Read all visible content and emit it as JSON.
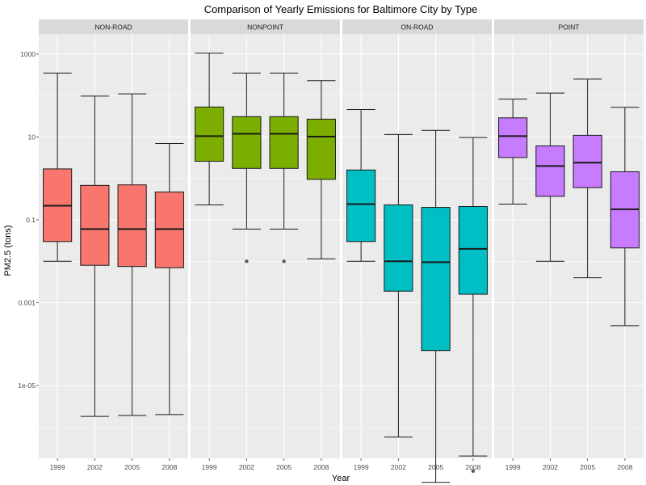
{
  "chart_data": {
    "type": "boxplot",
    "title": "Comparison of Yearly Emissions for Baltimore City by Type",
    "xlabel": "Year",
    "ylabel": "PM2.5 (tons)",
    "y_scale": "log10",
    "ylim": [
      7e-08,
      1000
    ],
    "y_ticks": [
      {
        "value": 1e-05,
        "label": "1e-05"
      },
      {
        "value": 0.001,
        "label": "0.001"
      },
      {
        "value": 0.1,
        "label": "0.1"
      },
      {
        "value": 10,
        "label": "10"
      },
      {
        "value": 1000,
        "label": "1000"
      }
    ],
    "categories": [
      "1999",
      "2002",
      "2005",
      "2008"
    ],
    "grid": true,
    "panels": [
      {
        "name": "NON-ROAD",
        "color": "#f8766d",
        "boxes": [
          {
            "x": "1999",
            "min": 0.01,
            "q1": 0.03,
            "median": 0.22,
            "q3": 1.7,
            "max": 350,
            "outliers": []
          },
          {
            "x": "2002",
            "min": 1.8e-06,
            "q1": 0.008,
            "median": 0.06,
            "q3": 0.68,
            "max": 97,
            "outliers": []
          },
          {
            "x": "2005",
            "min": 1.9e-06,
            "q1": 0.0075,
            "median": 0.06,
            "q3": 0.7,
            "max": 110,
            "outliers": []
          },
          {
            "x": "2008",
            "min": 2e-06,
            "q1": 0.007,
            "median": 0.06,
            "q3": 0.47,
            "max": 7,
            "outliers": []
          }
        ]
      },
      {
        "name": "NONPOINT",
        "color": "#7cae00",
        "boxes": [
          {
            "x": "1999",
            "min": 0.23,
            "q1": 2.6,
            "median": 10.5,
            "q3": 53,
            "max": 1050,
            "outliers": []
          },
          {
            "x": "2002",
            "min": 0.06,
            "q1": 1.75,
            "median": 12,
            "q3": 31,
            "max": 350,
            "outliers": [
              0.01
            ]
          },
          {
            "x": "2005",
            "min": 0.06,
            "q1": 1.75,
            "median": 12,
            "q3": 31,
            "max": 350,
            "outliers": [
              0.01
            ]
          },
          {
            "x": "2008",
            "min": 0.0115,
            "q1": 0.95,
            "median": 10.2,
            "q3": 27,
            "max": 230,
            "outliers": []
          }
        ]
      },
      {
        "name": "ON-ROAD",
        "color": "#00bfc4",
        "boxes": [
          {
            "x": "1999",
            "min": 0.01,
            "q1": 0.03,
            "median": 0.24,
            "q3": 1.6,
            "max": 46,
            "outliers": []
          },
          {
            "x": "2002",
            "min": 5.7e-07,
            "q1": 0.0019,
            "median": 0.01,
            "q3": 0.23,
            "max": 11.5,
            "outliers": []
          },
          {
            "x": "2005",
            "min": 4.6e-08,
            "q1": 7e-05,
            "median": 0.0095,
            "q3": 0.2,
            "max": 14.5,
            "outliers": []
          },
          {
            "x": "2008",
            "min": 2e-07,
            "q1": 0.0016,
            "median": 0.02,
            "q3": 0.21,
            "max": 9.7,
            "outliers": [
              8.6e-08
            ]
          }
        ]
      },
      {
        "name": "POINT",
        "color": "#c77cff",
        "boxes": [
          {
            "x": "1999",
            "min": 0.24,
            "q1": 3.2,
            "median": 10.5,
            "q3": 29,
            "max": 82,
            "outliers": []
          },
          {
            "x": "2002",
            "min": 0.01,
            "q1": 0.37,
            "median": 2.0,
            "q3": 6.1,
            "max": 115,
            "outliers": []
          },
          {
            "x": "2005",
            "min": 0.004,
            "q1": 0.6,
            "median": 2.4,
            "q3": 11,
            "max": 250,
            "outliers": []
          },
          {
            "x": "2008",
            "min": 0.00028,
            "q1": 0.021,
            "median": 0.18,
            "q3": 1.45,
            "max": 52,
            "outliers": []
          }
        ]
      }
    ]
  },
  "style": {
    "panel_bg": "#ebebeb",
    "strip_bg": "#d9d9d9",
    "grid_major": "#ffffff",
    "box_outline": "#1a1a1a",
    "outlier_color": "#595959"
  }
}
